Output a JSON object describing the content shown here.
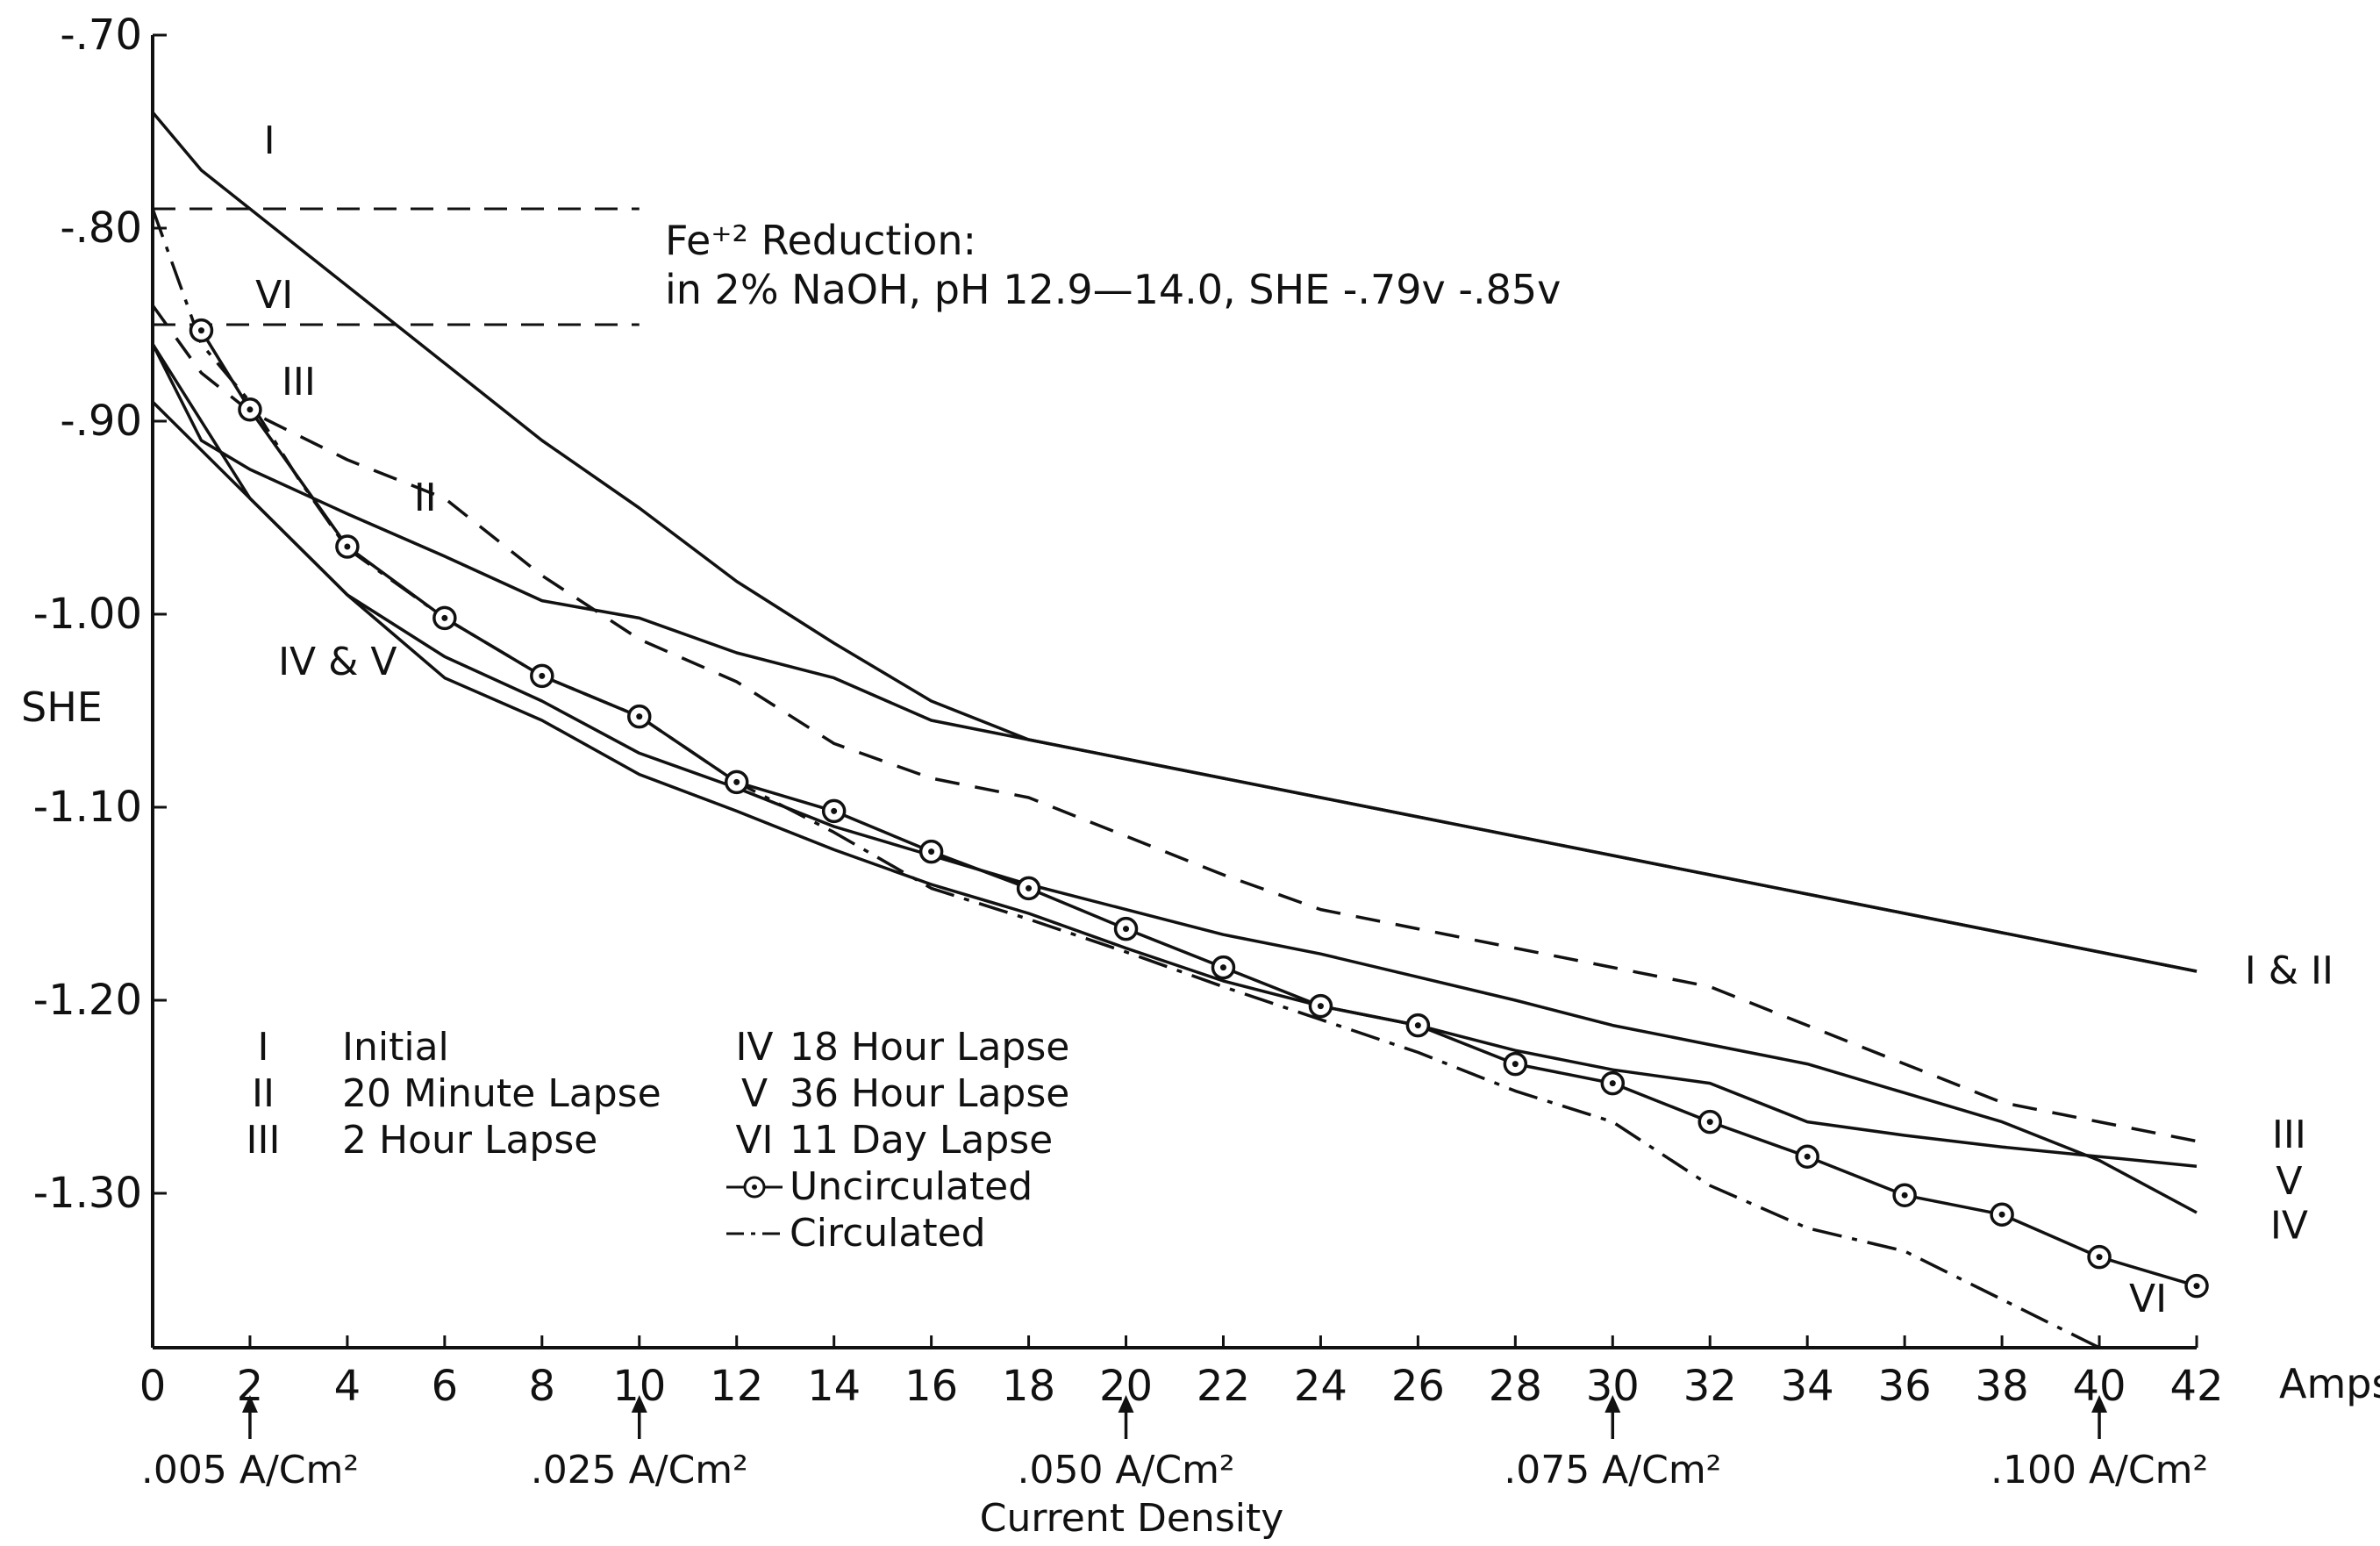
{
  "chart_data": {
    "type": "line",
    "xlabel": "Amps",
    "ylabel": "SHE",
    "xlim": [
      0,
      42
    ],
    "ylim": [
      -1.38,
      -0.7
    ],
    "x_ticks": [
      0,
      2,
      4,
      6,
      8,
      10,
      12,
      14,
      16,
      18,
      20,
      22,
      24,
      26,
      28,
      30,
      32,
      34,
      36,
      38,
      40,
      42
    ],
    "y_ticks": [
      {
        "value": -0.7,
        "label": "-.70"
      },
      {
        "value": -0.8,
        "label": "-.80"
      },
      {
        "value": -0.9,
        "label": "-.90"
      },
      {
        "value": -1.0,
        "label": "-1.00"
      },
      {
        "value": -1.1,
        "label": "-1.10"
      },
      {
        "value": -1.2,
        "label": "-1.20"
      },
      {
        "value": -1.3,
        "label": "-1.30"
      }
    ],
    "grid": false,
    "annotation": {
      "line1": "Fe⁺² Reduction:",
      "line2": "in 2% NaOH, pH 12.9—14.0, SHE -.79v -.85v"
    },
    "reference_lines": [
      {
        "y": -0.79,
        "x": [
          0,
          10
        ],
        "style": "dashed"
      },
      {
        "y": -0.85,
        "x": [
          0,
          10
        ],
        "style": "dashed"
      }
    ],
    "current_density": {
      "title": "Current Density",
      "markers": [
        {
          "x": 2,
          "label": ".005 A/Cm²"
        },
        {
          "x": 10,
          "label": ".025 A/Cm²"
        },
        {
          "x": 20,
          "label": ".050 A/Cm²"
        },
        {
          "x": 30,
          "label": ".075 A/Cm²"
        },
        {
          "x": 40,
          "label": ".100 A/Cm²"
        }
      ]
    },
    "series": [
      {
        "key": "I",
        "style": "solid",
        "x": [
          0,
          1,
          2,
          4,
          6,
          8,
          10,
          12,
          14,
          16,
          18,
          20,
          22,
          24,
          26,
          28,
          30,
          32,
          34,
          36,
          38,
          40,
          42
        ],
        "y": [
          -0.74,
          -0.77,
          -0.79,
          -0.83,
          -0.87,
          -0.91,
          -0.945,
          -0.983,
          -1.015,
          -1.045,
          -1.065,
          -1.075,
          -1.085,
          -1.095,
          -1.105,
          -1.115,
          -1.125,
          -1.135,
          -1.145,
          -1.155,
          -1.165,
          -1.175,
          -1.185
        ]
      },
      {
        "key": "II",
        "style": "solid",
        "x": [
          0,
          1,
          2,
          4,
          6,
          8,
          10,
          12,
          14,
          16,
          18,
          20,
          22,
          24,
          26,
          28,
          30,
          32,
          34,
          36,
          38,
          40,
          42
        ],
        "y": [
          -0.86,
          -0.91,
          -0.925,
          -0.948,
          -0.97,
          -0.993,
          -1.002,
          -1.02,
          -1.033,
          -1.055,
          -1.065,
          -1.075,
          -1.085,
          -1.095,
          -1.105,
          -1.115,
          -1.125,
          -1.135,
          -1.145,
          -1.155,
          -1.165,
          -1.175,
          -1.185
        ]
      },
      {
        "key": "III",
        "style": "dashed",
        "x": [
          0,
          1,
          2,
          4,
          6,
          8,
          10,
          12,
          14,
          16,
          18,
          20,
          22,
          24,
          26,
          28,
          30,
          32,
          34,
          36,
          38,
          40,
          42
        ],
        "y": [
          -0.84,
          -0.875,
          -0.895,
          -0.92,
          -0.94,
          -0.98,
          -1.013,
          -1.035,
          -1.067,
          -1.085,
          -1.095,
          -1.115,
          -1.135,
          -1.153,
          -1.163,
          -1.173,
          -1.183,
          -1.193,
          -1.213,
          -1.233,
          -1.253,
          -1.263,
          -1.273
        ]
      },
      {
        "key": "IV",
        "style": "solid",
        "x": [
          0,
          2,
          4,
          6,
          8,
          10,
          12,
          14,
          16,
          18,
          20,
          22,
          24,
          26,
          28,
          30,
          32,
          34,
          36,
          38,
          40,
          42
        ],
        "y": [
          -0.86,
          -0.94,
          -0.99,
          -1.022,
          -1.045,
          -1.072,
          -1.09,
          -1.11,
          -1.125,
          -1.14,
          -1.153,
          -1.166,
          -1.176,
          -1.188,
          -1.2,
          -1.213,
          -1.223,
          -1.233,
          -1.248,
          -1.263,
          -1.283,
          -1.31
        ]
      },
      {
        "key": "V",
        "style": "solid",
        "x": [
          0,
          2,
          4,
          6,
          8,
          10,
          12,
          14,
          16,
          18,
          20,
          22,
          24,
          26,
          28,
          30,
          32,
          34,
          36,
          38,
          40,
          42
        ],
        "y": [
          -0.89,
          -0.94,
          -0.99,
          -1.033,
          -1.055,
          -1.083,
          -1.102,
          -1.122,
          -1.14,
          -1.155,
          -1.173,
          -1.19,
          -1.203,
          -1.213,
          -1.226,
          -1.236,
          -1.243,
          -1.263,
          -1.27,
          -1.276,
          -1.281,
          -1.286
        ]
      },
      {
        "key": "VI",
        "style": "dashdot",
        "x": [
          0,
          1,
          2,
          3,
          4,
          6,
          8,
          10,
          12,
          14,
          16,
          18,
          20,
          22,
          24,
          26,
          28,
          30,
          32,
          34,
          36,
          38,
          40
        ],
        "y": [
          -0.79,
          -0.86,
          -0.89,
          -0.93,
          -0.966,
          -1.002,
          -1.032,
          -1.053,
          -1.087,
          -1.113,
          -1.142,
          -1.158,
          -1.175,
          -1.193,
          -1.21,
          -1.227,
          -1.247,
          -1.263,
          -1.296,
          -1.318,
          -1.33,
          -1.355,
          -1.38
        ]
      },
      {
        "key": "Uncirculated",
        "style": "circles",
        "x": [
          1,
          2,
          4,
          6,
          8,
          10,
          12,
          14,
          16,
          18,
          20,
          22,
          24,
          26,
          28,
          30,
          32,
          34,
          36,
          38,
          40,
          42
        ],
        "y": [
          -0.853,
          -0.894,
          -0.965,
          -1.002,
          -1.032,
          -1.053,
          -1.087,
          -1.102,
          -1.123,
          -1.142,
          -1.163,
          -1.183,
          -1.203,
          -1.213,
          -1.233,
          -1.243,
          -1.263,
          -1.281,
          -1.301,
          -1.311,
          -1.333,
          -1.348
        ]
      }
    ],
    "curve_labels": [
      {
        "text": "I",
        "x": 2.4,
        "y": -0.755
      },
      {
        "text": "VI",
        "x": 2.5,
        "y": -0.835
      },
      {
        "text": "III",
        "x": 3.0,
        "y": -0.88
      },
      {
        "text": "II",
        "x": 5.6,
        "y": -0.94
      },
      {
        "text": "IV & V",
        "x": 3.8,
        "y": -1.025
      },
      {
        "text": "I & II",
        "x": 43.9,
        "y": -1.185
      },
      {
        "text": "III",
        "x": 43.9,
        "y": -1.27
      },
      {
        "text": "V",
        "x": 43.9,
        "y": -1.294
      },
      {
        "text": "IV",
        "x": 43.9,
        "y": -1.317
      },
      {
        "text": "VI",
        "x": 41.0,
        "y": -1.355
      }
    ],
    "legend": [
      {
        "numeral": "I",
        "label": "Initial"
      },
      {
        "numeral": "II",
        "label": "20 Minute Lapse"
      },
      {
        "numeral": "III",
        "label": "2 Hour Lapse"
      },
      {
        "numeral": "IV",
        "label": "18 Hour Lapse"
      },
      {
        "numeral": "V",
        "label": "36 Hour Lapse"
      },
      {
        "numeral": "VI",
        "label": "11 Day Lapse"
      },
      {
        "numeral": "",
        "label": "Uncirculated"
      },
      {
        "numeral": "",
        "label": "Circulated"
      }
    ]
  }
}
